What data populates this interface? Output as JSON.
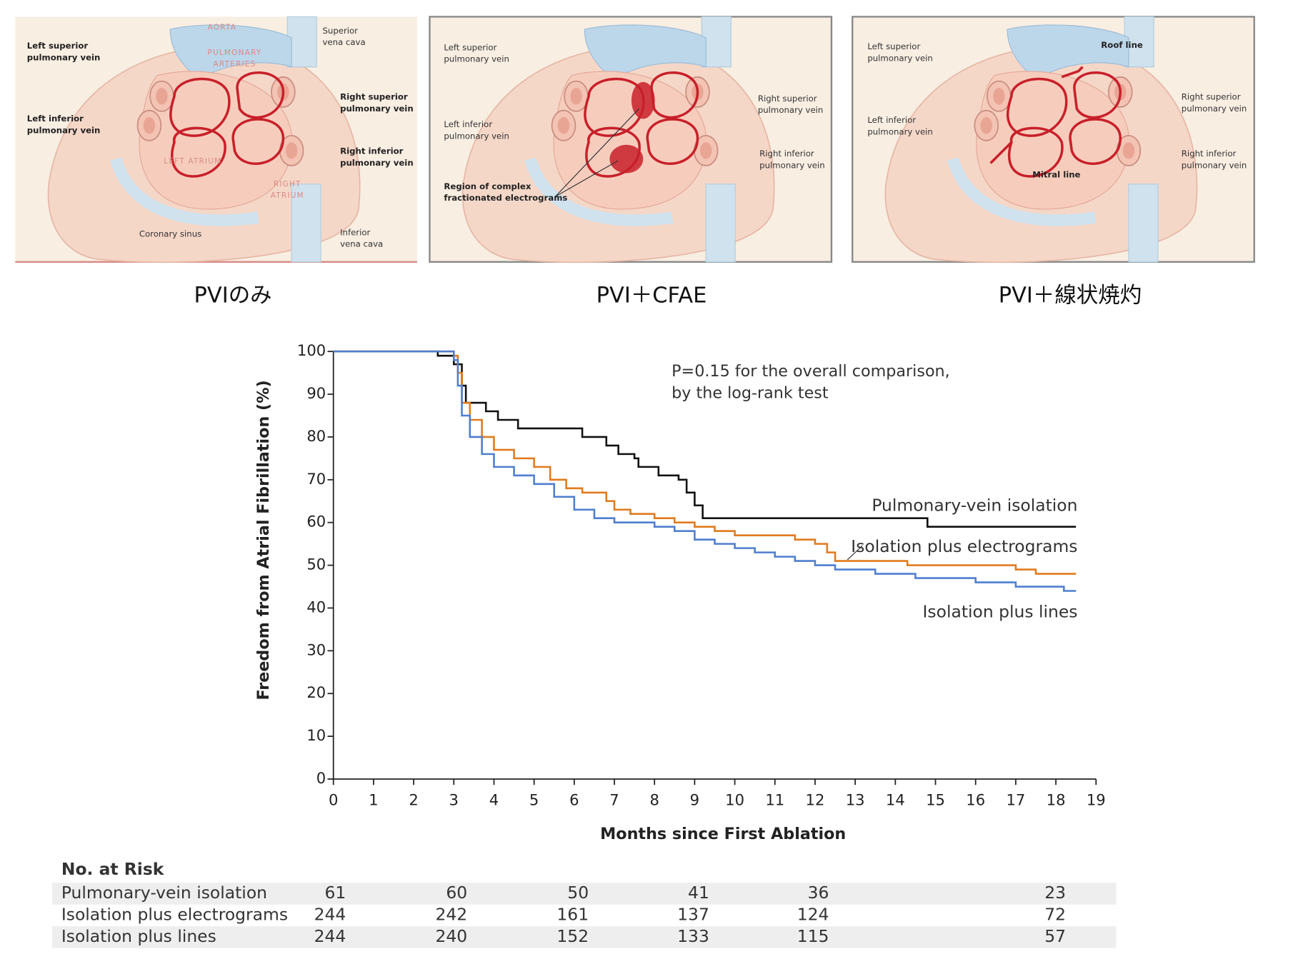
{
  "panels": [
    {
      "caption": "PVIのみ",
      "labels": [
        {
          "lines": [
            "AORTA"
          ]
        },
        {
          "lines": [
            "Superior",
            "vena cava"
          ]
        },
        {
          "lines": [
            "PULMONARY",
            "ARTERIES"
          ]
        },
        {
          "lines": [
            "Left superior",
            "pulmonary vein"
          ]
        },
        {
          "lines": [
            "Left inferior",
            "pulmonary vein"
          ]
        },
        {
          "lines": [
            "Right superior",
            "pulmonary vein"
          ]
        },
        {
          "lines": [
            "Right inferior",
            "pulmonary vein"
          ]
        },
        {
          "lines": [
            "LEFT ATRIUM"
          ]
        },
        {
          "lines": [
            "RIGHT",
            "ATRIUM"
          ]
        },
        {
          "lines": [
            "Coronary sinus"
          ]
        },
        {
          "lines": [
            "Inferior",
            "vena cava"
          ]
        }
      ]
    },
    {
      "caption": "PVI＋CFAE",
      "labels": [
        {
          "lines": [
            "Left superior",
            "pulmonary vein"
          ]
        },
        {
          "lines": [
            "Left inferior",
            "pulmonary vein"
          ]
        },
        {
          "lines": [
            "Right superior",
            "pulmonary vein"
          ]
        },
        {
          "lines": [
            "Right inferior",
            "pulmonary vein"
          ]
        },
        {
          "lines": [
            "Region of complex",
            "fractionated electrograms"
          ]
        }
      ]
    },
    {
      "caption": "PVI＋線状焼灼",
      "labels": [
        {
          "lines": [
            "Left superior",
            "pulmonary vein"
          ]
        },
        {
          "lines": [
            "Left inferior",
            "pulmonary vein"
          ]
        },
        {
          "lines": [
            "Roof line"
          ]
        },
        {
          "lines": [
            "Right superior",
            "pulmonary vein"
          ]
        },
        {
          "lines": [
            "Right inferior",
            "pulmonary vein"
          ]
        },
        {
          "lines": [
            "Mitral line"
          ]
        }
      ]
    }
  ],
  "chart_data": {
    "type": "step",
    "x_label": "Months since First Ablation",
    "y_label": "Freedom from Atrial Fibrillation (%)",
    "annotation": [
      "P=0.15 for the overall comparison,",
      "by the log-rank test"
    ],
    "xlim": [
      0,
      19
    ],
    "xticks": [
      0,
      1,
      2,
      3,
      4,
      5,
      6,
      7,
      8,
      9,
      10,
      11,
      12,
      13,
      14,
      15,
      16,
      17,
      18,
      19
    ],
    "ylim": [
      0,
      100
    ],
    "yticks": [
      0,
      10,
      20,
      30,
      40,
      50,
      60,
      70,
      80,
      90,
      100
    ],
    "series": [
      {
        "name": "Pulmonary-vein isolation",
        "color": "#111111",
        "x": [
          0,
          2.6,
          3.0,
          3.2,
          3.3,
          3.8,
          4.1,
          4.6,
          6.2,
          6.8,
          7.1,
          7.5,
          7.6,
          8.1,
          8.6,
          8.8,
          9.0,
          9.2,
          14.8,
          18.5
        ],
        "values": [
          100,
          99,
          97,
          92,
          88,
          86,
          84,
          82,
          80,
          78,
          76,
          75,
          73,
          71,
          70,
          67,
          64,
          61,
          59,
          59
        ]
      },
      {
        "name": "Isolation plus electrograms",
        "color": "#e07b1f",
        "x": [
          0,
          3.0,
          3.1,
          3.2,
          3.4,
          3.7,
          4.0,
          4.5,
          5.0,
          5.4,
          5.8,
          6.2,
          6.8,
          7.0,
          7.4,
          8.0,
          8.5,
          9.0,
          9.5,
          10.0,
          11.5,
          12.0,
          12.3,
          12.5,
          14.3,
          17.0,
          17.5,
          18.5
        ],
        "values": [
          100,
          99,
          95,
          88,
          84,
          80,
          77,
          75,
          73,
          70,
          68,
          67,
          65,
          63,
          62,
          61,
          60,
          59,
          58,
          57,
          56,
          55,
          53,
          51,
          50,
          49,
          48,
          48
        ]
      },
      {
        "name": "Isolation plus lines",
        "color": "#4f7fcf",
        "x": [
          0,
          3.0,
          3.1,
          3.2,
          3.4,
          3.7,
          4.0,
          4.5,
          5.0,
          5.5,
          6.0,
          6.5,
          7.0,
          8.0,
          8.5,
          9.0,
          9.5,
          10.0,
          10.5,
          11.0,
          11.5,
          12.0,
          12.5,
          13.5,
          14.5,
          16.0,
          17.0,
          18.2,
          18.5
        ],
        "values": [
          100,
          98,
          92,
          85,
          80,
          76,
          73,
          71,
          69,
          66,
          63,
          61,
          60,
          59,
          58,
          56,
          55,
          54,
          53,
          52,
          51,
          50,
          49,
          48,
          47,
          46,
          45,
          44,
          44
        ]
      }
    ]
  },
  "risk_table": {
    "title": "No. at Risk",
    "rows": [
      {
        "name": "Pulmonary-vein isolation",
        "values": [
          61,
          60,
          50,
          41,
          36,
          23
        ]
      },
      {
        "name": "Isolation plus electrograms",
        "values": [
          244,
          242,
          161,
          137,
          124,
          72
        ]
      },
      {
        "name": "Isolation plus lines",
        "values": [
          244,
          240,
          152,
          133,
          115,
          57
        ]
      }
    ]
  }
}
